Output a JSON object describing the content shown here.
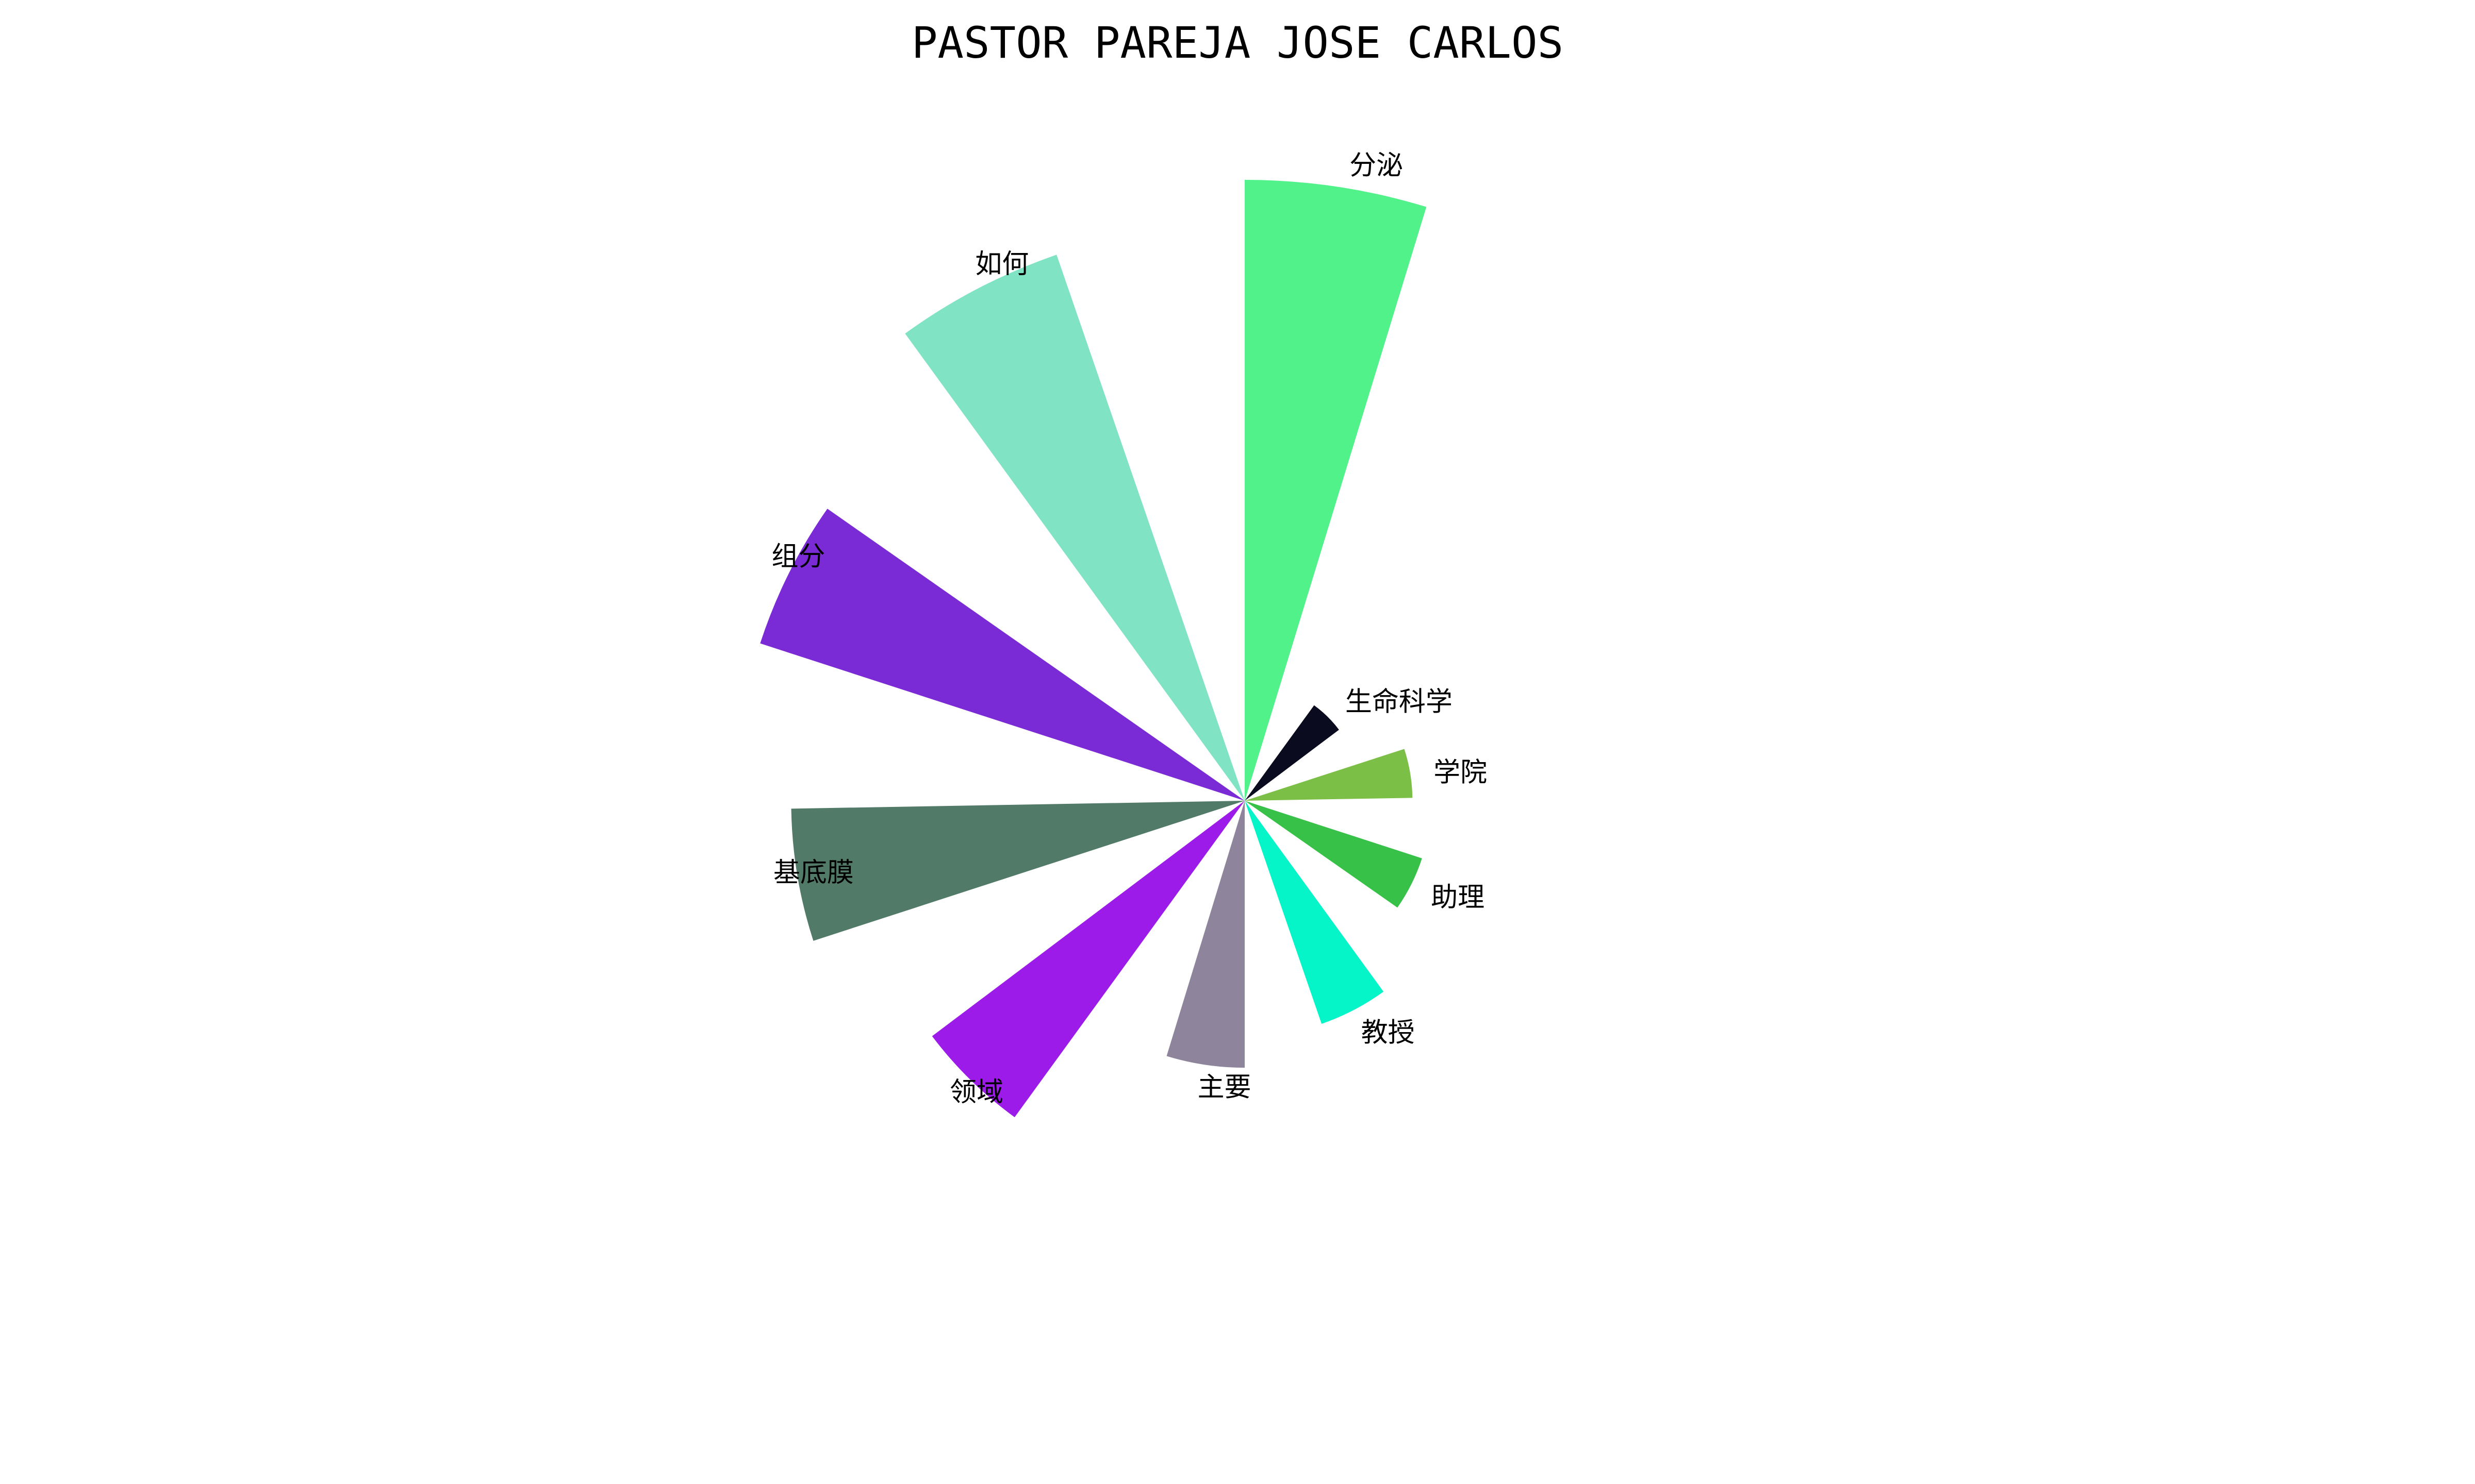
{
  "chart_data": {
    "type": "pie",
    "title": "PASTOR PAREJA JOSE CARLOS",
    "variant": "rose",
    "categories": [
      "分泌",
      "生命科学",
      "学院",
      "助理",
      "教授",
      "主要",
      "领域",
      "基底膜",
      "组分",
      "如何"
    ],
    "values": [
      100,
      19,
      27,
      30,
      38,
      43,
      63,
      73,
      82,
      93
    ],
    "colors": [
      "#52f28a",
      "#0b0b20",
      "#7cbf47",
      "#38c148",
      "#05f5c8",
      "#8e849c",
      "#9c1be8",
      "#527a68",
      "#7b2bd6",
      "#80e3c3"
    ],
    "legend": "none",
    "grid": false
  }
}
